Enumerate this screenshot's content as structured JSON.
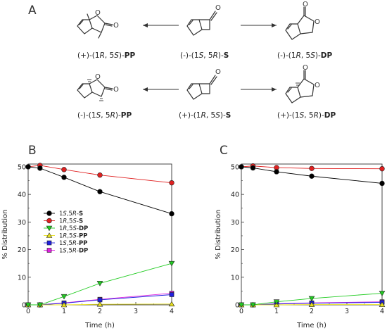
{
  "panels": {
    "a": "A",
    "b": "B",
    "c": "C"
  },
  "scheme": {
    "row1": {
      "left_prefix": "(+)-(1",
      "left_r": "R",
      "left_mid": ", 5",
      "left_s": "S",
      "left_suffix": ")-",
      "left_bold": "PP",
      "center_prefix": "(-)-(1",
      "center_a": "S",
      "center_mid": ", 5",
      "center_b": "R",
      "center_suffix": ")-",
      "center_bold": "S",
      "right_prefix": "(-)-(1",
      "right_a": "R",
      "right_mid": ", 5",
      "right_b": "S",
      "right_suffix": ")-",
      "right_bold": "DP"
    },
    "row2": {
      "left_prefix": "(-)-(1",
      "left_a": "S",
      "left_mid": ", 5",
      "left_b": "R",
      "left_suffix": ")-",
      "left_bold": "PP",
      "center_prefix": "(+)-(1",
      "center_a": "R",
      "center_mid": ", 5",
      "center_b": "S",
      "center_suffix": ")-",
      "center_bold": "S",
      "right_prefix": "(+)-(1",
      "right_a": "S",
      "right_mid": ", 5",
      "right_b": "R",
      "right_suffix": ")-",
      "right_bold": "DP"
    },
    "atom_o": "O"
  },
  "chart_data": [
    {
      "panel": "B",
      "type": "line",
      "xlabel": "Time (h)",
      "ylabel": "% Distribution",
      "xlim": [
        0,
        4
      ],
      "ylim": [
        0,
        51
      ],
      "xticks": [
        "0",
        "1",
        "2",
        "3",
        "4"
      ],
      "yticks": [
        "0",
        "10",
        "20",
        "30",
        "40",
        "50"
      ],
      "legend_position": "center-left",
      "series": [
        {
          "name": "1S,5R-S",
          "color": "#000000",
          "marker": "circle",
          "x": [
            0,
            0.33,
            1,
            2,
            4
          ],
          "y": [
            50,
            49.5,
            46.2,
            41,
            33
          ]
        },
        {
          "name": "1R,5S-S",
          "color": "#e02020",
          "marker": "circle",
          "x": [
            0,
            0.33,
            1,
            2,
            4
          ],
          "y": [
            50,
            50.5,
            49,
            47,
            44.2
          ]
        },
        {
          "name": "1R,5S-DP",
          "color": "#22cc22",
          "marker": "triangle-down",
          "x": [
            0,
            0.33,
            1,
            2,
            4
          ],
          "y": [
            0,
            0,
            3,
            7.8,
            15
          ]
        },
        {
          "name": "1R,5S-PP",
          "color": "#e8e020",
          "marker": "triangle-up",
          "x": [
            0,
            0.33,
            1,
            2,
            4
          ],
          "y": [
            0,
            0,
            0,
            0.2,
            0.3
          ]
        },
        {
          "name": "1S,5R-PP",
          "color": "#2020e0",
          "marker": "square",
          "x": [
            0,
            0.33,
            1,
            2,
            4
          ],
          "y": [
            0,
            0,
            0.6,
            1.8,
            3.7
          ]
        },
        {
          "name": "1S,5R-DP",
          "color": "#e020e0",
          "marker": "square",
          "x": [
            0,
            0.33,
            1,
            2,
            4
          ],
          "y": [
            0,
            0,
            0.7,
            2.0,
            4.2
          ]
        }
      ]
    },
    {
      "panel": "C",
      "type": "line",
      "xlabel": "Time (h)",
      "ylabel": "% Distribution",
      "xlim": [
        0,
        4
      ],
      "ylim": [
        0,
        51
      ],
      "xticks": [
        "0",
        "1",
        "2",
        "3",
        "4"
      ],
      "yticks": [
        "0",
        "10",
        "20",
        "30",
        "40",
        "50"
      ],
      "series": [
        {
          "name": "1S,5R-S",
          "color": "#000000",
          "marker": "circle",
          "x": [
            0,
            0.33,
            1,
            2,
            4
          ],
          "y": [
            50,
            49.6,
            48.2,
            46.6,
            44
          ]
        },
        {
          "name": "1R,5S-S",
          "color": "#e02020",
          "marker": "circle",
          "x": [
            0,
            0.33,
            1,
            2,
            4
          ],
          "y": [
            50,
            50.3,
            49.7,
            49.4,
            49.3
          ]
        },
        {
          "name": "1R,5S-DP",
          "color": "#22cc22",
          "marker": "triangle-down",
          "x": [
            0,
            0.33,
            1,
            2,
            4
          ],
          "y": [
            0,
            0,
            1.1,
            2.3,
            4.2
          ]
        },
        {
          "name": "1R,5S-PP",
          "color": "#e8e020",
          "marker": "triangle-up",
          "x": [
            0,
            0.33,
            1,
            2,
            4
          ],
          "y": [
            0,
            0,
            0,
            0.1,
            0.1
          ]
        },
        {
          "name": "1S,5R-PP",
          "color": "#2020e0",
          "marker": "square",
          "x": [
            0,
            0.33,
            1,
            2,
            4
          ],
          "y": [
            0,
            0,
            0.3,
            0.6,
            0.9
          ]
        },
        {
          "name": "1S,5R-DP",
          "color": "#e020e0",
          "marker": "square",
          "x": [
            0,
            0.33,
            1,
            2,
            4
          ],
          "y": [
            0,
            0,
            0.4,
            0.7,
            1.1
          ]
        }
      ]
    }
  ]
}
